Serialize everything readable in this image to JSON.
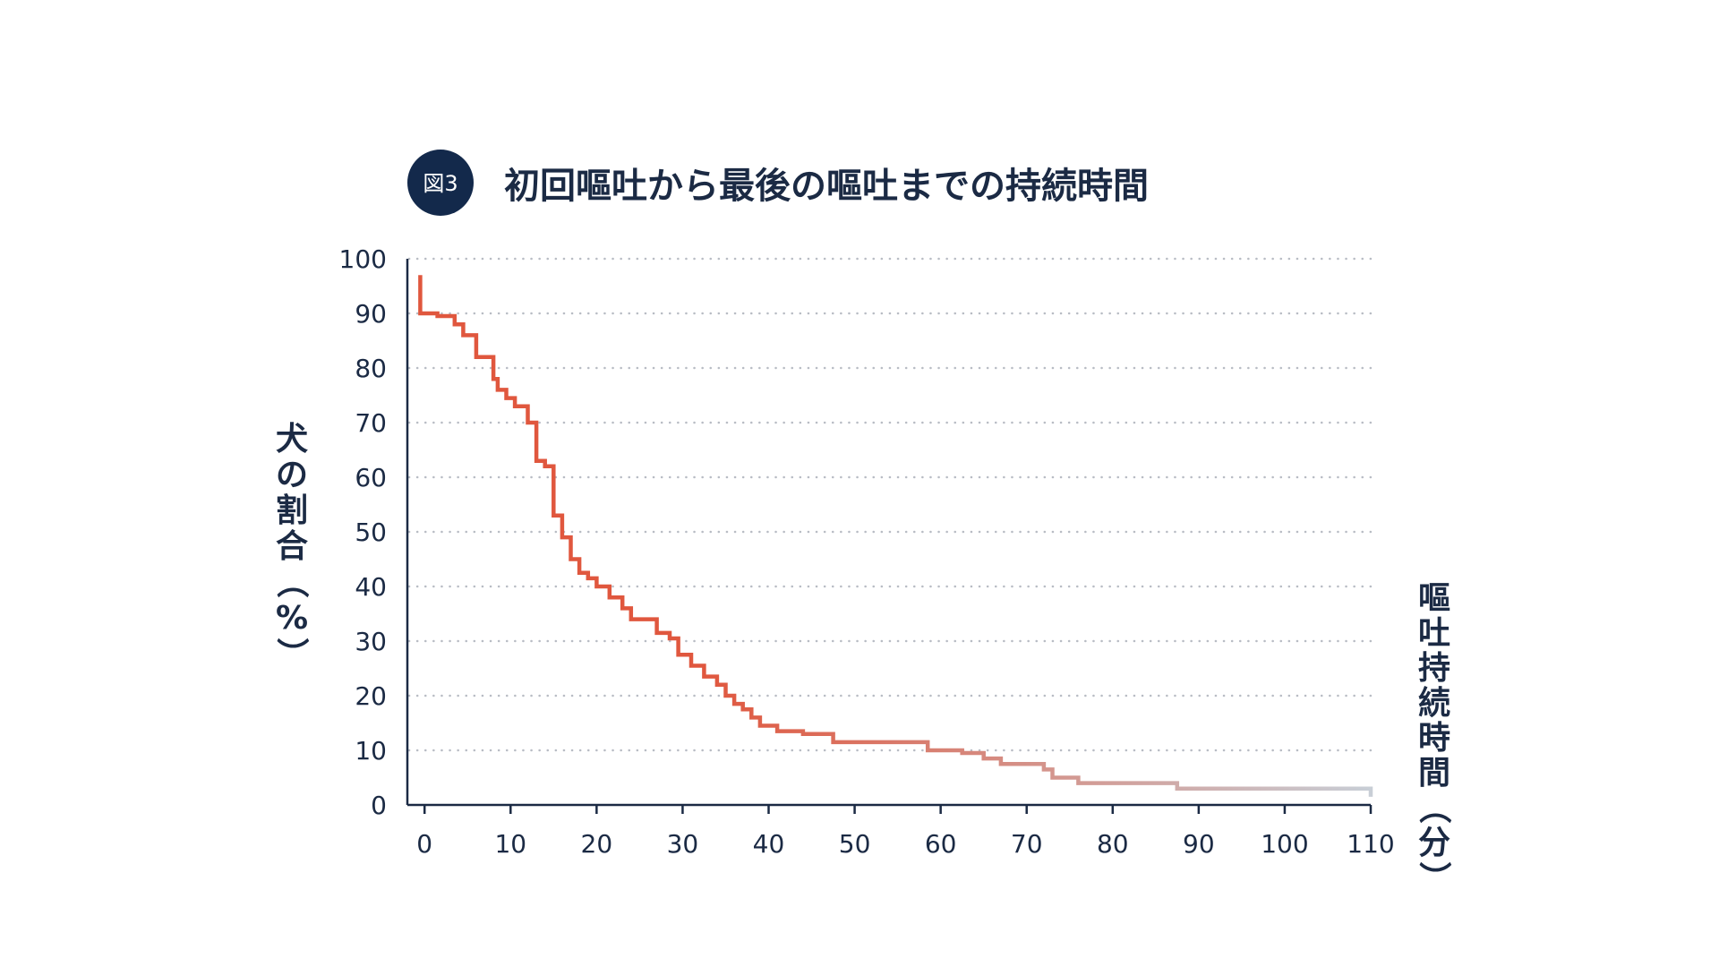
{
  "badge": {
    "label": "図3"
  },
  "title": "初回嘔吐から最後の嘔吐までの持続時間",
  "colors": {
    "text": "#1b2a44",
    "badge_bg": "#13294b",
    "line_start": "#e0573e",
    "line_end": "#c8ced6",
    "grid": "#b8bcc4",
    "axis": "#1b2a44"
  },
  "chart_data": {
    "type": "line",
    "step": "post",
    "ylabel": "犬の割合（%）",
    "xlabel": "嘔吐持続時間（分）",
    "xlim": [
      -2,
      110
    ],
    "ylim": [
      0,
      100
    ],
    "xticks": [
      0,
      10,
      20,
      30,
      40,
      50,
      60,
      70,
      80,
      90,
      100,
      110
    ],
    "yticks": [
      0,
      10,
      20,
      30,
      40,
      50,
      60,
      70,
      80,
      90,
      100
    ],
    "grid": "horizontal dotted",
    "series": [
      {
        "x": [
          -0.5,
          -0.5,
          1.5,
          3.5,
          4.5,
          6,
          8,
          8.5,
          9.5,
          10.5,
          12,
          13,
          14,
          15,
          16,
          17,
          18,
          19,
          20,
          21.5,
          23,
          24,
          27,
          28.5,
          29.5,
          31,
          32.5,
          34,
          35,
          36,
          37,
          38,
          39,
          41,
          44,
          47.5,
          58.5,
          62.5,
          65,
          67,
          72,
          73,
          76,
          87.5,
          110
        ],
        "y": [
          97,
          90,
          89.5,
          88,
          86,
          82,
          78,
          76,
          74.5,
          73,
          70,
          63,
          62,
          53,
          49,
          45,
          42.5,
          41.5,
          40,
          38,
          36,
          34,
          31.5,
          30.5,
          27.5,
          25.5,
          23.5,
          22,
          20,
          18.5,
          17.5,
          16,
          14.5,
          13.5,
          13,
          11.5,
          10,
          9.5,
          8.5,
          7.5,
          6.5,
          5,
          4,
          3,
          3
        ]
      }
    ]
  }
}
